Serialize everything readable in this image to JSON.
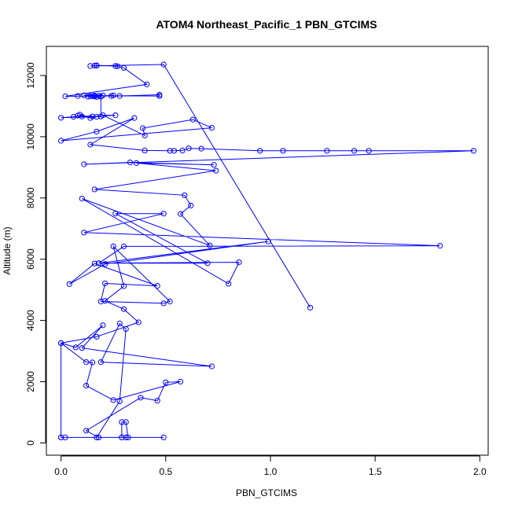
{
  "chart_data": {
    "type": "line",
    "title": "ATOM4 Northeast_Pacific_1 PBN_GTCIMS",
    "xlabel": "PBN_GTCIMS",
    "ylabel": "Altitude (m)",
    "xlim": [
      -0.07,
      2.04
    ],
    "ylim": [
      -400,
      12950
    ],
    "xticks": [
      0.0,
      0.5,
      1.0,
      1.5,
      2.0
    ],
    "xtick_labels": [
      "0.0",
      "0.5",
      "1.0",
      "1.5",
      "2.0"
    ],
    "yticks": [
      0,
      2000,
      4000,
      6000,
      8000,
      10000,
      12000
    ],
    "ytick_labels": [
      "0",
      "2000",
      "4000",
      "6000",
      "8000",
      "10000",
      "12000"
    ],
    "grid": false,
    "legend": "none",
    "series": [
      {
        "color": "#0000ff",
        "marker": "open-circle",
        "x": [
          0.49,
          0.31,
          0.29,
          0.29,
          0.31,
          0.32,
          0.29,
          0.18,
          0.12,
          0.38,
          0.46,
          0.5,
          0.57,
          0.25,
          0.12,
          0.15,
          0.12,
          0.0,
          0.0,
          0.0,
          0.02,
          0.17,
          0.28,
          0.31,
          0.28,
          0.19,
          0.72,
          0.1,
          0.2,
          0.07,
          0.0,
          0.17,
          0.37,
          0.3,
          0.21,
          0.3,
          0.25,
          0.52,
          0.49,
          0.19,
          0.21,
          0.46,
          0.16,
          0.04,
          0.21,
          0.99,
          0.18,
          0.3,
          1.81,
          0.11,
          0.49,
          0.26,
          0.7,
          0.18,
          0.85,
          0.8,
          0.1,
          0.71,
          0.57,
          0.62,
          0.59,
          0.16,
          0.74,
          0.36,
          0.73,
          0.33,
          0.11,
          1.97,
          1.47,
          1.4,
          1.27,
          1.06,
          0.95,
          0.67,
          0.61,
          0.58,
          0.54,
          0.52,
          0.4,
          0.14,
          0.35,
          0.17,
          0.0,
          0.72,
          0.63,
          0.39,
          0.4,
          0.2,
          0.26,
          0.15,
          0.1,
          0.09,
          0.14,
          0.17,
          0.08,
          0.06,
          0.0,
          0.19,
          0.19,
          0.13,
          0.25,
          0.16,
          0.08,
          0.15,
          0.17,
          0.18,
          0.2,
          0.11,
          0.16,
          0.47,
          0.47,
          0.28,
          0.24,
          0.16,
          0.14,
          0.02,
          0.41,
          0.3,
          0.26,
          0.27,
          0.17,
          0.16,
          0.17,
          0.14,
          0.49,
          1.19
        ],
        "y": [
          180,
          180,
          180,
          680,
          680,
          180,
          180,
          180,
          400,
          1480,
          1380,
          1980,
          2000,
          1400,
          1870,
          2630,
          2640,
          3260,
          180,
          180,
          180,
          180,
          1360,
          3720,
          3900,
          2640,
          2500,
          3100,
          3840,
          3120,
          3260,
          3470,
          3940,
          4370,
          4640,
          5120,
          6420,
          4620,
          4560,
          4620,
          5210,
          5130,
          5860,
          5190,
          5840,
          6580,
          5870,
          6420,
          6440,
          6870,
          7490,
          7490,
          5870,
          5870,
          5900,
          5200,
          7980,
          6450,
          7480,
          7750,
          8090,
          8280,
          8890,
          9140,
          9080,
          9160,
          9100,
          9540,
          9540,
          9540,
          9540,
          9540,
          9540,
          9610,
          9620,
          9550,
          9540,
          9540,
          9550,
          9740,
          10610,
          10170,
          9870,
          10290,
          10560,
          10280,
          10040,
          10700,
          10700,
          10660,
          10660,
          10720,
          10610,
          10650,
          10690,
          10650,
          10620,
          10660,
          11310,
          11310,
          11350,
          11320,
          11330,
          11320,
          11300,
          11340,
          11350,
          11350,
          11340,
          11330,
          11370,
          11330,
          11330,
          11340,
          11330,
          11320,
          11710,
          12250,
          12310,
          12300,
          12330,
          12320,
          12320,
          12310,
          12360,
          4420
        ]
      }
    ]
  }
}
